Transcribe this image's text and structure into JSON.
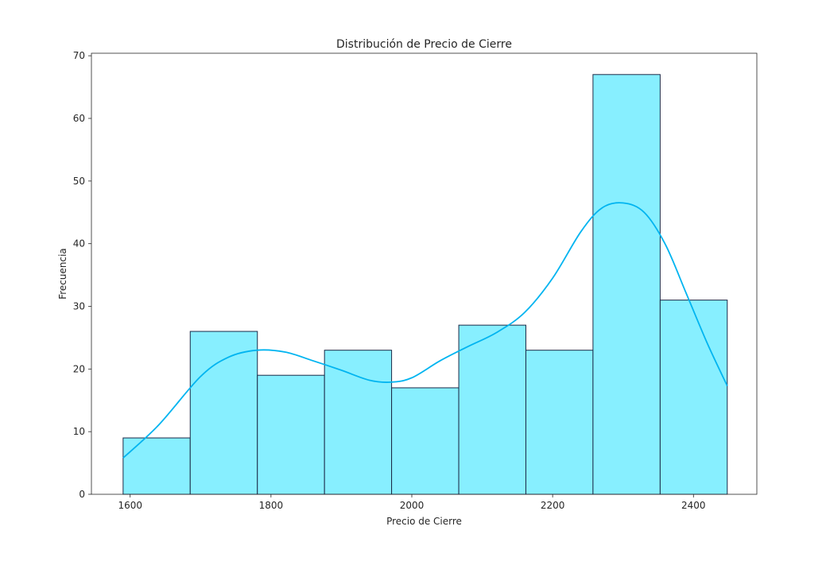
{
  "chart_data": {
    "type": "bar",
    "title": "Distribución de Precio de Cierre",
    "xlabel": "Precio de Cierre",
    "ylabel": "Frecuencia",
    "xlim": [
      1545,
      2490
    ],
    "ylim": [
      0,
      70.4
    ],
    "x_ticks": [
      1600,
      1800,
      2000,
      2200,
      2400
    ],
    "y_ticks": [
      0,
      10,
      20,
      30,
      40,
      50,
      60,
      70
    ],
    "bin_edges": [
      1590,
      1685.3,
      1780.7,
      1876,
      1971.3,
      2066.7,
      2162,
      2257.3,
      2352.7,
      2448
    ],
    "values": [
      9,
      26,
      19,
      23,
      17,
      27,
      23,
      67,
      31
    ],
    "kde": {
      "x": [
        1590,
        1640,
        1700,
        1740,
        1780,
        1820,
        1860,
        1900,
        1940,
        1970,
        2000,
        2040,
        2080,
        2120,
        2160,
        2200,
        2240,
        2270,
        2300,
        2330,
        2360,
        2390,
        2420,
        2448
      ],
      "y": [
        5.8,
        11,
        18.8,
        21.9,
        23,
        22.7,
        21.3,
        19.8,
        18.2,
        17.9,
        18.6,
        21.3,
        23.6,
        25.8,
        29,
        34.5,
        41.9,
        45.7,
        46.5,
        45,
        39.9,
        32,
        24,
        17.3
      ]
    },
    "colors": {
      "bar_fill": "#87efff",
      "bar_edge": "#1b2a47",
      "kde_line": "#00b4f0"
    },
    "grid": false,
    "legend": "none"
  }
}
